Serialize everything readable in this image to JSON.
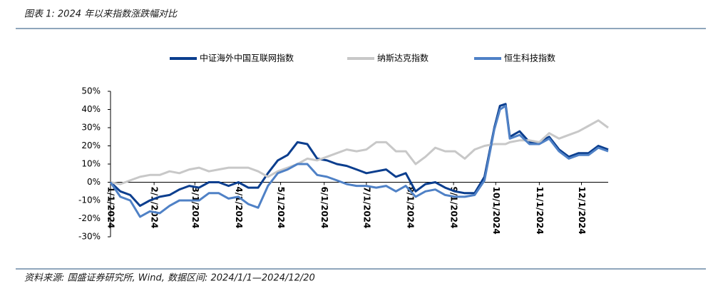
{
  "chart_data": {
    "type": "line",
    "title": "图表 1:  2024 年以来指数涨跌幅对比",
    "source": "资料来源: 国盛证券研究所, Wind, 数据区间: 2024/1/1—2024/12/20",
    "x": [
      "2024-01-01",
      "2024-01-08",
      "2024-01-15",
      "2024-01-22",
      "2024-01-29",
      "2024-02-05",
      "2024-02-12",
      "2024-02-19",
      "2024-02-26",
      "2024-03-04",
      "2024-03-11",
      "2024-03-18",
      "2024-03-25",
      "2024-04-01",
      "2024-04-08",
      "2024-04-15",
      "2024-04-22",
      "2024-04-29",
      "2024-05-06",
      "2024-05-13",
      "2024-05-20",
      "2024-05-27",
      "2024-06-03",
      "2024-06-10",
      "2024-06-17",
      "2024-06-24",
      "2024-07-01",
      "2024-07-08",
      "2024-07-15",
      "2024-07-22",
      "2024-07-29",
      "2024-08-05",
      "2024-08-12",
      "2024-08-19",
      "2024-08-26",
      "2024-09-02",
      "2024-09-09",
      "2024-09-16",
      "2024-09-23",
      "2024-09-30",
      "2024-10-04",
      "2024-10-08",
      "2024-10-11",
      "2024-10-18",
      "2024-10-25",
      "2024-11-01",
      "2024-11-08",
      "2024-11-15",
      "2024-11-22",
      "2024-11-29",
      "2024-12-06",
      "2024-12-13",
      "2024-12-20"
    ],
    "series": [
      {
        "name": "中证海外中国互联网指数",
        "color": "#0b3e8e",
        "values": [
          0,
          -5,
          -7,
          -13,
          -10,
          -8,
          -7,
          -4,
          -2,
          -3,
          0,
          0,
          -2,
          0,
          -3,
          -3,
          5,
          12,
          15,
          22,
          21,
          13,
          12,
          10,
          9,
          7,
          5,
          6,
          7,
          3,
          5,
          -5,
          -1,
          0,
          -3,
          -5,
          -6,
          -6,
          3,
          30,
          42,
          43,
          25,
          28,
          22,
          22,
          25,
          18,
          14,
          16,
          16,
          20,
          18
        ]
      },
      {
        "name": "纳斯达克指数",
        "color": "#c8c8c8",
        "values": [
          0,
          -1,
          1,
          3,
          4,
          4,
          6,
          5,
          7,
          8,
          6,
          7,
          8,
          8,
          8,
          6,
          3,
          6,
          8,
          10,
          13,
          12,
          14,
          16,
          18,
          17,
          18,
          22,
          22,
          17,
          17,
          10,
          14,
          19,
          17,
          17,
          13,
          18,
          20,
          21,
          21,
          21,
          22,
          23,
          23,
          22,
          27,
          24,
          26,
          28,
          31,
          34,
          30
        ]
      },
      {
        "name": "恒生科技指数",
        "color": "#4f81c6",
        "values": [
          0,
          -8,
          -10,
          -19,
          -16,
          -17,
          -13,
          -10,
          -10,
          -10,
          -6,
          -6,
          -9,
          -8,
          -12,
          -14,
          -2,
          5,
          7,
          10,
          10,
          4,
          3,
          1,
          -1,
          -2,
          -2,
          -3,
          -2,
          -5,
          -2,
          -8,
          -5,
          -4,
          -7,
          -8,
          -8,
          -7,
          1,
          29,
          40,
          42,
          24,
          26,
          21,
          21,
          24,
          17,
          13,
          15,
          15,
          19,
          17
        ]
      }
    ],
    "xlim": [
      "2024-01-01",
      "2024-12-20"
    ],
    "xticks": [
      {
        "value": "2024-01-01",
        "label": "1/1/2024"
      },
      {
        "value": "2024-02-01",
        "label": "2/1/2024"
      },
      {
        "value": "2024-03-01",
        "label": "3/1/2024"
      },
      {
        "value": "2024-04-01",
        "label": "4/1/2024"
      },
      {
        "value": "2024-05-01",
        "label": "5/1/2024"
      },
      {
        "value": "2024-06-01",
        "label": "6/1/2024"
      },
      {
        "value": "2024-07-01",
        "label": "7/1/2024"
      },
      {
        "value": "2024-08-01",
        "label": "8/1/2024"
      },
      {
        "value": "2024-09-01",
        "label": "9/1/2024"
      },
      {
        "value": "2024-10-01",
        "label": "10/1/2024"
      },
      {
        "value": "2024-11-01",
        "label": "11/1/2024"
      },
      {
        "value": "2024-12-01",
        "label": "12/1/2024"
      }
    ],
    "ylim": [
      -30,
      50
    ],
    "yticks": [
      {
        "value": -30,
        "label": "-30%"
      },
      {
        "value": -20,
        "label": "-20%"
      },
      {
        "value": -10,
        "label": "-10%"
      },
      {
        "value": 0,
        "label": "0%"
      },
      {
        "value": 10,
        "label": "10%"
      },
      {
        "value": 20,
        "label": "20%"
      },
      {
        "value": 30,
        "label": "30%"
      },
      {
        "value": 40,
        "label": "40%"
      },
      {
        "value": 50,
        "label": "50%"
      }
    ],
    "legend": "top"
  }
}
